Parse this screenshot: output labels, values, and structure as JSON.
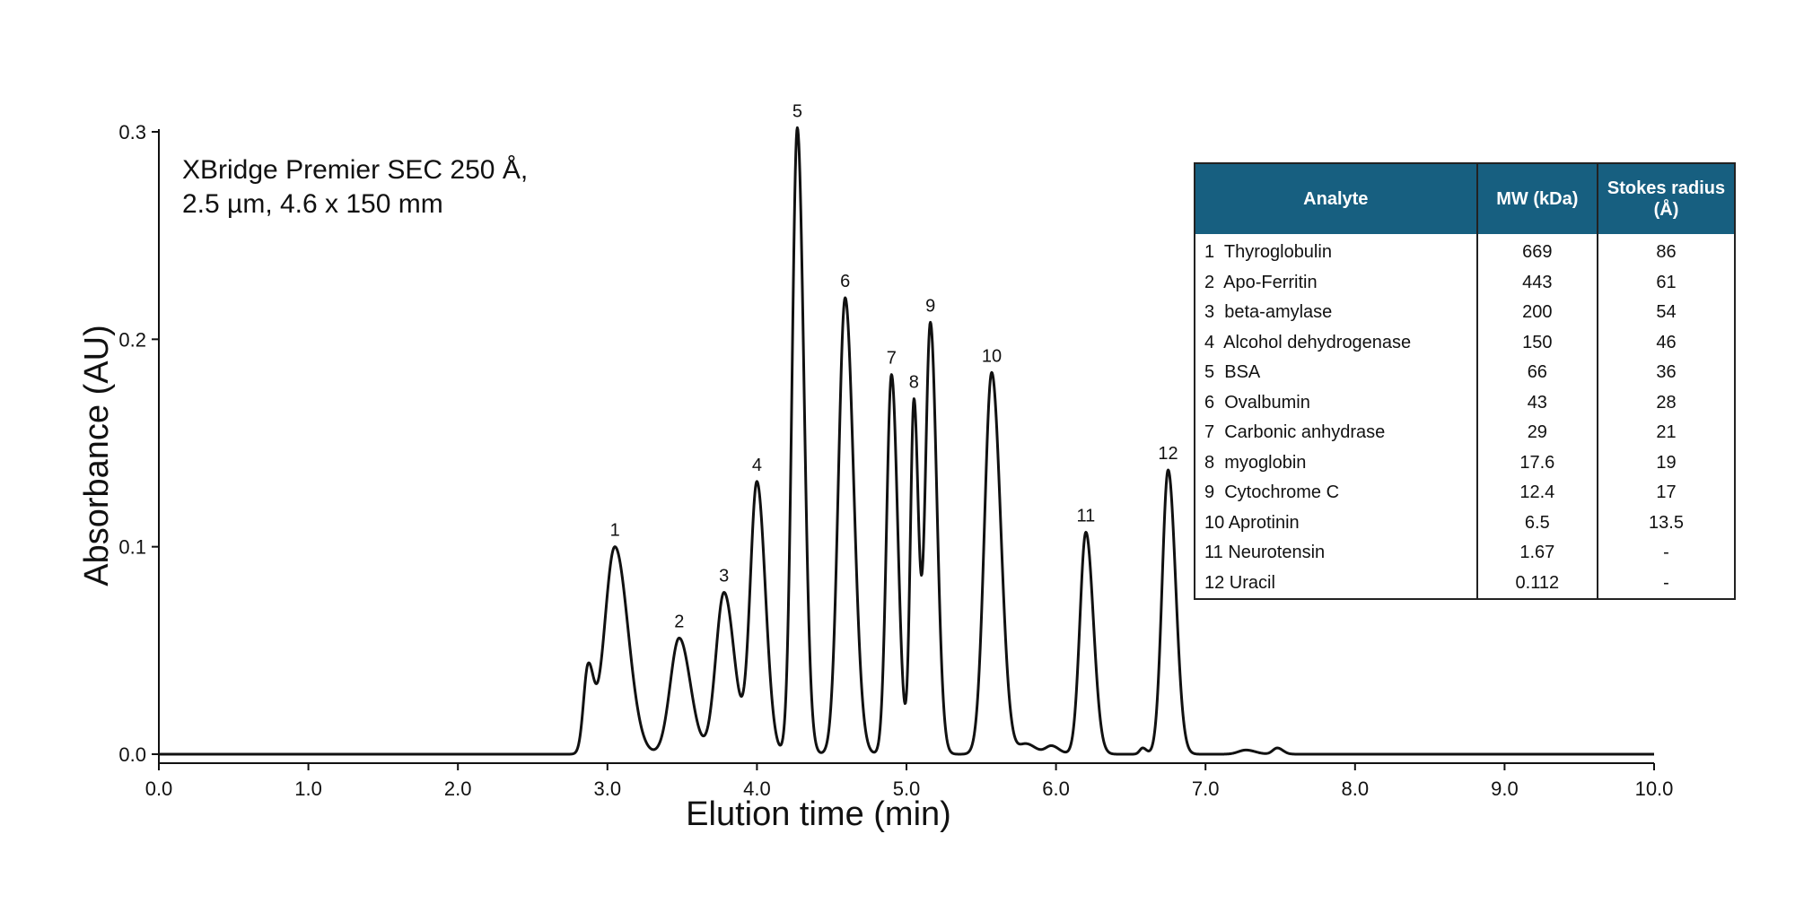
{
  "chart_data": {
    "type": "line",
    "title": "",
    "annotation_lines": [
      "XBridge Premier SEC 250 Å,",
      "2.5 µm, 4.6 x 150 mm"
    ],
    "xlabel": "Elution time (min)",
    "ylabel": "Absorbance (AU)",
    "xlim": [
      0.0,
      10.0
    ],
    "ylim": [
      0.0,
      0.3
    ],
    "x_ticks": [
      "0.0",
      "1.0",
      "2.0",
      "3.0",
      "4.0",
      "5.0",
      "6.0",
      "7.0",
      "8.0",
      "9.0",
      "10.0"
    ],
    "y_ticks": [
      "0.0",
      "0.1",
      "0.2",
      "0.3"
    ],
    "grid": false,
    "baseline": 0.0,
    "trace_end": 10.0,
    "peaks": [
      {
        "label": "",
        "rt": 2.87,
        "height": 0.04,
        "sigma": 0.03
      },
      {
        "label": "1",
        "rt": 3.05,
        "height": 0.1,
        "sigma": 0.07
      },
      {
        "label": "2",
        "rt": 3.48,
        "height": 0.056,
        "sigma": 0.06
      },
      {
        "label": "3",
        "rt": 3.78,
        "height": 0.078,
        "sigma": 0.055
      },
      {
        "label": "4",
        "rt": 4.0,
        "height": 0.131,
        "sigma": 0.045
      },
      {
        "label": "5",
        "rt": 4.27,
        "height": 0.302,
        "sigma": 0.035
      },
      {
        "label": "6",
        "rt": 4.59,
        "height": 0.22,
        "sigma": 0.045
      },
      {
        "label": "7",
        "rt": 4.9,
        "height": 0.183,
        "sigma": 0.033
      },
      {
        "label": "8",
        "rt": 5.05,
        "height": 0.17,
        "sigma": 0.024
      },
      {
        "label": "9",
        "rt": 5.16,
        "height": 0.208,
        "sigma": 0.034
      },
      {
        "label": "10",
        "rt": 5.57,
        "height": 0.184,
        "sigma": 0.048
      },
      {
        "label": "",
        "rt": 5.8,
        "height": 0.005,
        "sigma": 0.05
      },
      {
        "label": "",
        "rt": 5.97,
        "height": 0.004,
        "sigma": 0.04
      },
      {
        "label": "11",
        "rt": 6.2,
        "height": 0.107,
        "sigma": 0.04
      },
      {
        "label": "",
        "rt": 6.58,
        "height": 0.003,
        "sigma": 0.02
      },
      {
        "label": "12",
        "rt": 6.75,
        "height": 0.137,
        "sigma": 0.04
      },
      {
        "label": "",
        "rt": 7.27,
        "height": 0.002,
        "sigma": 0.05
      },
      {
        "label": "",
        "rt": 7.48,
        "height": 0.003,
        "sigma": 0.03
      }
    ]
  },
  "table": {
    "headers": [
      "Analyte",
      "MW (kDa)",
      "Stokes radius (Å)"
    ],
    "rows": [
      [
        "1  Thyroglobulin",
        "669",
        "86"
      ],
      [
        "2  Apo-Ferritin",
        "443",
        "61"
      ],
      [
        "3  beta-amylase",
        "200",
        "54"
      ],
      [
        "4  Alcohol dehydrogenase",
        "150",
        "46"
      ],
      [
        "5  BSA",
        "66",
        "36"
      ],
      [
        "6  Ovalbumin",
        "43",
        "28"
      ],
      [
        "7  Carbonic anhydrase",
        "29",
        "21"
      ],
      [
        "8  myoglobin",
        "17.6",
        "19"
      ],
      [
        "9  Cytochrome C",
        "12.4",
        "17"
      ],
      [
        "10 Aprotinin",
        "6.5",
        "13.5"
      ],
      [
        "11 Neurotensin",
        "1.67",
        "-"
      ],
      [
        "12 Uracil",
        "0.112",
        "-"
      ]
    ]
  },
  "colors": {
    "trace": "#111111",
    "table_header_bg": "#175f80",
    "table_header_text": "#ffffff"
  }
}
